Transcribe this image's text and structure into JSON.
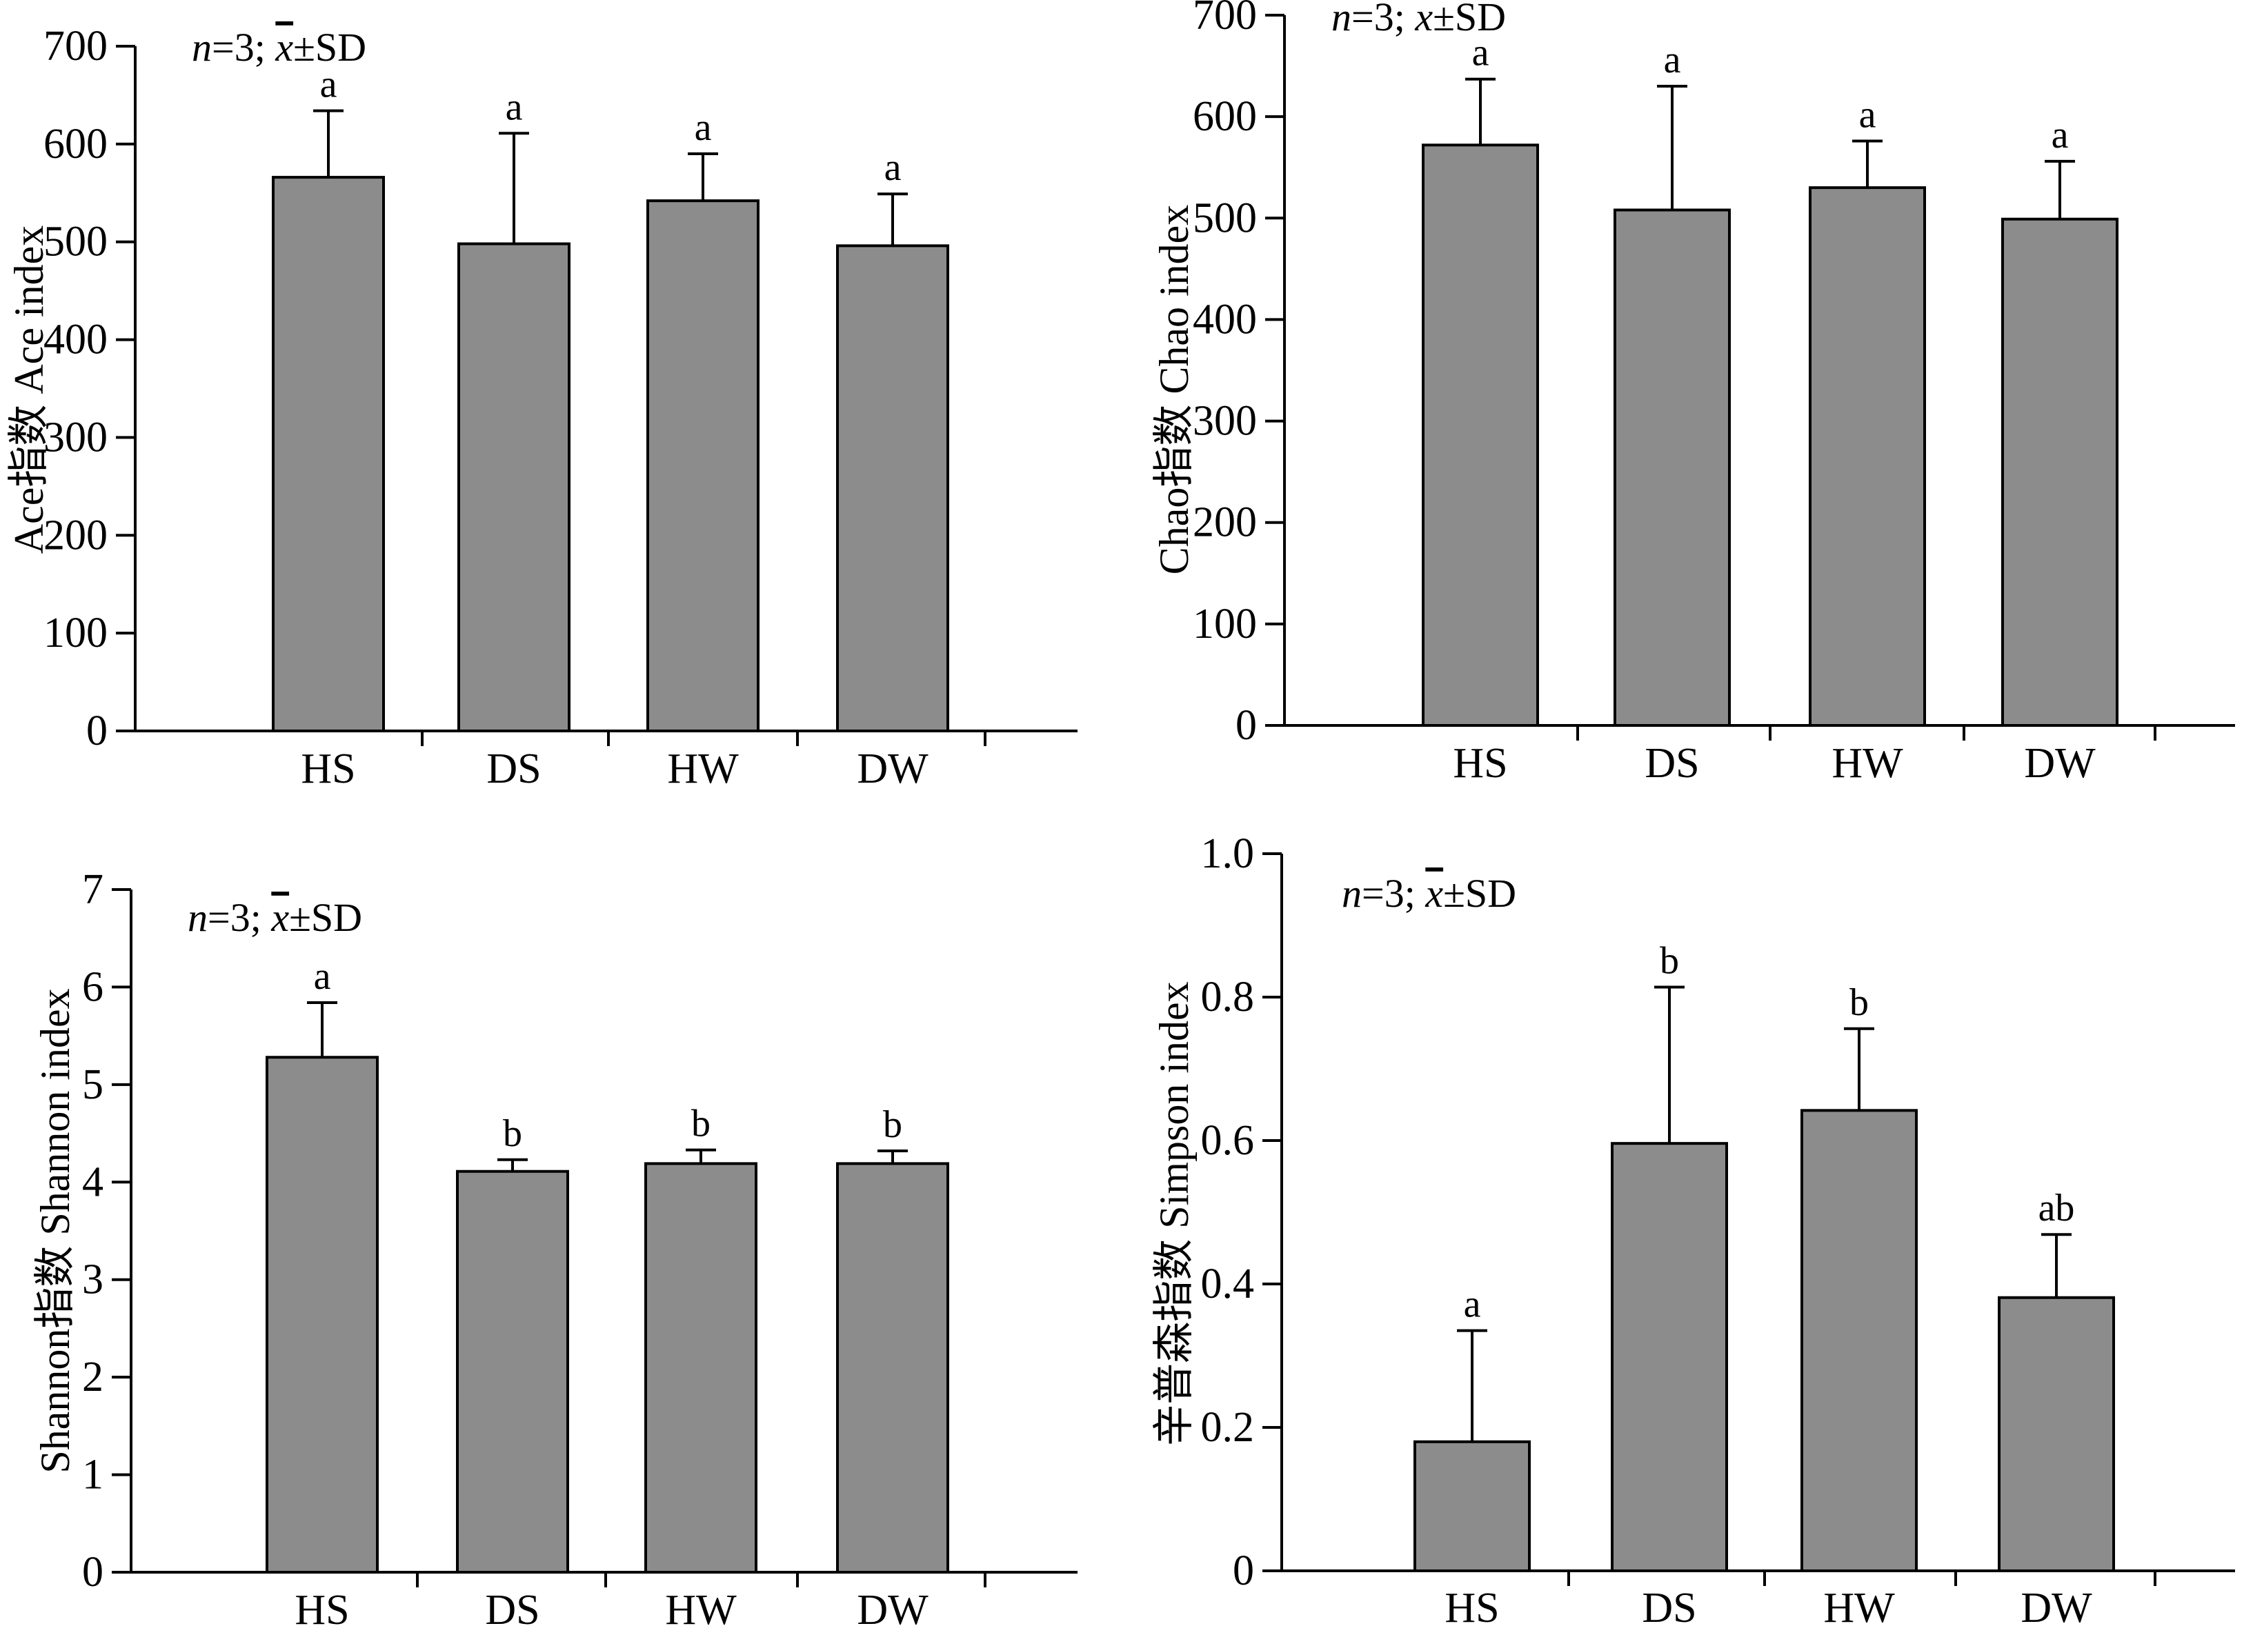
{
  "colors": {
    "bar_fill": "#8c8c8c",
    "bar_stroke": "#000000",
    "axis": "#000000",
    "background": "#ffffff"
  },
  "chart_data": [
    {
      "type": "bar",
      "panel": "top-left",
      "categories": [
        "HS",
        "DS",
        "HW",
        "DW"
      ],
      "values": [
        566,
        498,
        542,
        496
      ],
      "sd": [
        68,
        113,
        48,
        53
      ],
      "significance": [
        "a",
        "a",
        "a",
        "a"
      ],
      "ylabel": "Ace指数 Ace index",
      "ylim": [
        0,
        700
      ],
      "yticks": [
        "0",
        "100",
        "200",
        "300",
        "400",
        "500",
        "600",
        "700"
      ],
      "note": {
        "n_italic": "n",
        "n_rest": "=3; ",
        "xbar": "x",
        "rest": "±SD"
      },
      "grid": false
    },
    {
      "type": "bar",
      "panel": "top-right",
      "categories": [
        "HS",
        "DS",
        "HW",
        "DW"
      ],
      "values": [
        572,
        508,
        530,
        499
      ],
      "sd": [
        65,
        122,
        46,
        57
      ],
      "significance": [
        "a",
        "a",
        "a",
        "a"
      ],
      "ylabel": "Chao指数 Chao index",
      "ylim": [
        0,
        700
      ],
      "yticks": [
        "0",
        "100",
        "200",
        "300",
        "400",
        "500",
        "600",
        "700"
      ],
      "note": {
        "n_italic": "n",
        "n_rest": "=3; ",
        "xbar": "x",
        "rest": "±SD"
      },
      "grid": false
    },
    {
      "type": "bar",
      "panel": "bottom-left",
      "categories": [
        "HS",
        "DS",
        "HW",
        "DW"
      ],
      "values": [
        5.28,
        4.11,
        4.19,
        4.19
      ],
      "sd": [
        0.56,
        0.12,
        0.14,
        0.13
      ],
      "significance": [
        "a",
        "b",
        "b",
        "b"
      ],
      "ylabel": "Shannon指数 Shannon index",
      "ylim": [
        0,
        7
      ],
      "yticks": [
        "0",
        "1",
        "2",
        "3",
        "4",
        "5",
        "6",
        "7"
      ],
      "note": {
        "n_italic": "n",
        "n_rest": "=3; ",
        "xbar": "x",
        "rest": "±SD"
      },
      "grid": false
    },
    {
      "type": "bar",
      "panel": "bottom-right",
      "categories": [
        "HS",
        "DS",
        "HW",
        "DW"
      ],
      "values": [
        0.18,
        0.596,
        0.642,
        0.381
      ],
      "sd": [
        0.155,
        0.218,
        0.114,
        0.088
      ],
      "significance": [
        "a",
        "b",
        "b",
        "ab"
      ],
      "ylabel": "辛普森指数 Simpson index",
      "ylim": [
        0,
        1.0
      ],
      "yticks": [
        "0",
        "0.2",
        "0.4",
        "0.6",
        "0.8",
        "1.0"
      ],
      "note": {
        "n_italic": "n",
        "n_rest": "=3; ",
        "xbar": "x",
        "rest": "±SD"
      },
      "grid": false
    }
  ]
}
